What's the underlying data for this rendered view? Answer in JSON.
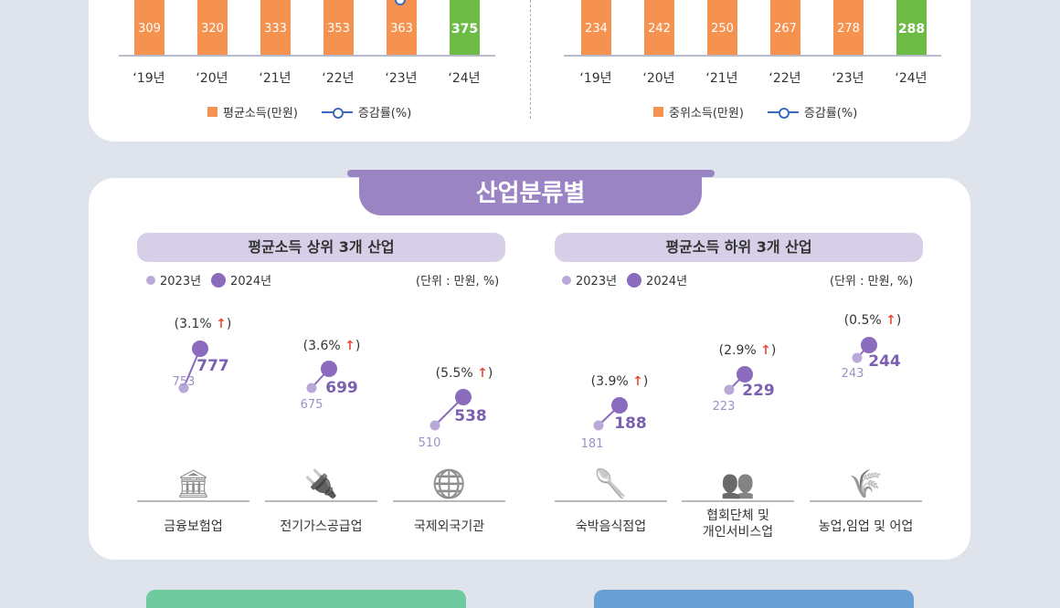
{
  "chart_data": [
    {
      "type": "bar",
      "categories": [
        "‘19년",
        "‘20년",
        "‘21년",
        "‘22년",
        "‘23년",
        "‘24년"
      ],
      "values": [
        309,
        320,
        333,
        353,
        363,
        375
      ],
      "legend": [
        "평균소득(만원)",
        "증감률(%)"
      ],
      "colors": {
        "bar": "#f6924f",
        "highlight": "#6dbb45",
        "line": "#3b6bbf"
      },
      "legend_placement": "bottom"
    },
    {
      "type": "bar",
      "categories": [
        "‘19년",
        "‘20년",
        "‘21년",
        "‘22년",
        "‘23년",
        "‘24년"
      ],
      "values": [
        234,
        242,
        250,
        267,
        278,
        288
      ],
      "legend": [
        "중위소득(만원)",
        "증감률(%)"
      ],
      "colors": {
        "bar": "#f6924f",
        "highlight": "#6dbb45",
        "line": "#3b6bbf"
      },
      "legend_placement": "bottom"
    },
    {
      "type": "scatter",
      "title": "평균소득 상위 3개 산업",
      "legend": [
        "2023년",
        "2024년"
      ],
      "unit": "(단위 : 만원, %)",
      "items": [
        {
          "industry": "금융보험업",
          "icon": "bank-icon",
          "v2023": 753,
          "v2024": 777,
          "change": "(3.1%",
          "arrow": "↑"
        },
        {
          "industry": "전기가스공급업",
          "icon": "plug-leaf-icon",
          "v2023": 675,
          "v2024": 699,
          "change": "(3.6%",
          "arrow": "↑"
        },
        {
          "industry": "국제외국기관",
          "icon": "globe-icon",
          "v2023": 510,
          "v2024": 538,
          "change": "(5.5%",
          "arrow": "↑"
        }
      ]
    },
    {
      "type": "scatter",
      "title": "평균소득 하위 3개 산업",
      "legend": [
        "2023년",
        "2024년"
      ],
      "unit": "(단위 : 만원, %)",
      "items": [
        {
          "industry": "숙박음식점업",
          "icon": "spoon-chopsticks-icon",
          "v2023": 181,
          "v2024": 188,
          "change": "(3.9%",
          "arrow": "↑"
        },
        {
          "industry": "협회단체 및\n개인서비스업",
          "icon": "people-icon",
          "v2023": 223,
          "v2024": 229,
          "change": "(2.9%",
          "arrow": "↑"
        },
        {
          "industry": "농업,임업 및 어업",
          "icon": "grain-fish-icon",
          "v2023": 243,
          "v2024": 244,
          "change": "(0.5%",
          "arrow": "↑"
        }
      ]
    }
  ],
  "section_title": "산업분류별",
  "paren_close": ")"
}
